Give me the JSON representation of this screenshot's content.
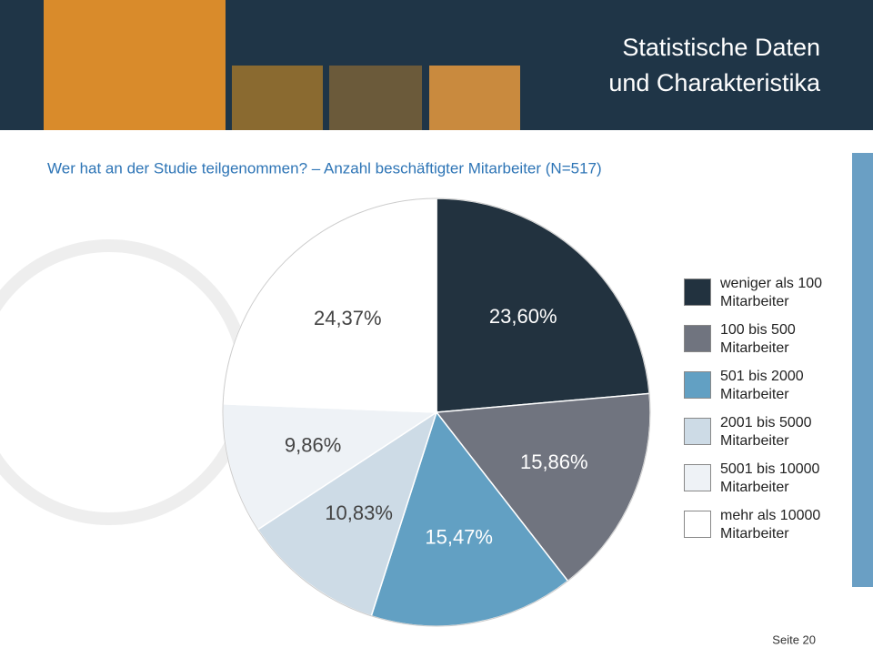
{
  "header": {
    "title": [
      "Statistische Daten",
      "und Charakteristika"
    ]
  },
  "chart_data": {
    "type": "pie",
    "title": "Wer hat an der Studie teilgenommen? – Anzahl beschäftigter Mitarbeiter (N=517)",
    "categories": [
      "weniger als 100 Mitarbeiter",
      "100 bis 500 Mitarbeiter",
      "501 bis 2000 Mitarbeiter",
      "2001 bis 5000 Mitarbeiter",
      "5001 bis 10000 Mitarbeiter",
      "mehr als 10000 Mitarbeiter"
    ],
    "values": [
      23.6,
      15.86,
      15.47,
      10.83,
      9.86,
      24.37
    ],
    "value_labels": [
      "23,60%",
      "15,86%",
      "15,47%",
      "10,83%",
      "9,86%",
      "24,37%"
    ],
    "colors": [
      "#22323f",
      "#70747f",
      "#62a0c3",
      "#cddbe6",
      "#eef2f6",
      "#ffffff"
    ],
    "legend": "right"
  },
  "footer": {
    "page": "Seite 20"
  }
}
